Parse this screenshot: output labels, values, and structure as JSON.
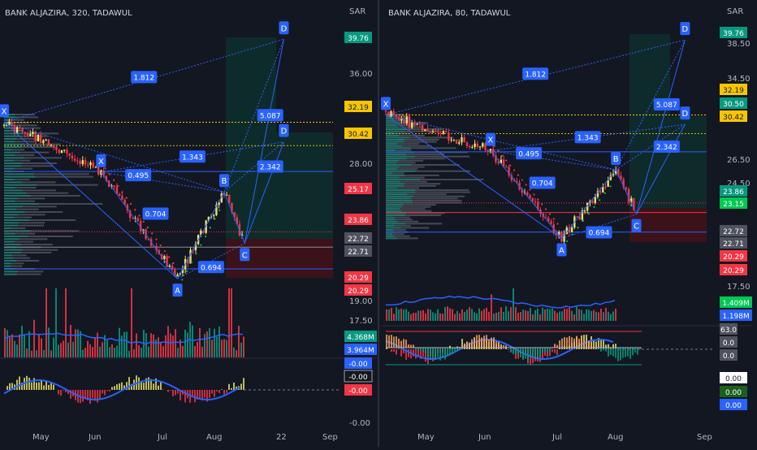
{
  "currency": "SAR",
  "chart_data": [
    {
      "type": "line",
      "title": "BANK ALJAZIRA, 320, TADAWUL",
      "x_axis_labels": [
        "May",
        "Jun",
        "Jul",
        "Aug",
        "22",
        "Sep"
      ],
      "y_axis_labels": [
        "36.00",
        "28.00",
        "19.00",
        "17.50",
        "-0.00"
      ],
      "price_badges": [
        {
          "value": "39.76",
          "color": "#089981"
        },
        {
          "value": "32.19",
          "color": "#f7c600"
        },
        {
          "value": "30.42",
          "color": "#f7c600"
        },
        {
          "value": "25.17",
          "color": "#f23645"
        },
        {
          "value": "23.86",
          "color": "#f23645"
        },
        {
          "value": "22.72",
          "color": "#50535e"
        },
        {
          "value": "22.71",
          "color": "#50535e"
        },
        {
          "value": "20.29",
          "color": "#f23645"
        },
        {
          "value": "20.29",
          "color": "#f23645"
        }
      ],
      "volume_badges": [
        {
          "value": "4.368M",
          "color": "#089981"
        },
        {
          "value": "3.964M",
          "color": "#2962ff"
        }
      ],
      "oscillator_badges": [
        {
          "value": "-0.00",
          "color": "#2962ff"
        },
        {
          "value": "-0.00",
          "color": "#131722"
        },
        {
          "value": "-0.00",
          "color": "#f23645"
        }
      ],
      "pattern_points": [
        {
          "label": "X",
          "x": "2022-04-01",
          "y": 32.2
        },
        {
          "label": "A",
          "x": "2022-07-03",
          "y": 20.3
        },
        {
          "label": "B",
          "x": "2022-07-28",
          "y": 26.9
        },
        {
          "label": "C",
          "x": "2022-08-08",
          "y": 23.0
        },
        {
          "label": "D",
          "x": "2022-08-29",
          "y": 38.5
        },
        {
          "label": "X",
          "x": "2022-05-23",
          "y": 28.4
        },
        {
          "label": "D",
          "x": "2022-08-29",
          "y": 30.7
        }
      ],
      "ratios": [
        "1.812",
        "5.087",
        "0.495",
        "1.343",
        "2.342",
        "0.704",
        "0.694"
      ]
    },
    {
      "type": "line",
      "title": "BANK ALJAZIRA, 80, TADAWUL",
      "x_axis_labels": [
        "May",
        "Jun",
        "Jul",
        "Aug",
        "Sep"
      ],
      "y_axis_labels": [
        "38.50",
        "34.50",
        "26.50",
        "24.50",
        "17.50"
      ],
      "price_badges": [
        {
          "value": "39.76",
          "color": "#089981"
        },
        {
          "value": "32.19",
          "color": "#f7c600"
        },
        {
          "value": "30.50",
          "color": "#089981"
        },
        {
          "value": "30.42",
          "color": "#f7c600"
        },
        {
          "value": "23.86",
          "color": "#089981"
        },
        {
          "value": "23.15",
          "color": "#00c853"
        },
        {
          "value": "22.72",
          "color": "#50535e"
        },
        {
          "value": "22.71",
          "color": "#50535e"
        },
        {
          "value": "20.29",
          "color": "#f23645"
        },
        {
          "value": "20.29",
          "color": "#f23645"
        }
      ],
      "volume_badges": [
        {
          "value": "1.409M",
          "color": "#00c853"
        },
        {
          "value": "1.198M",
          "color": "#2962ff"
        }
      ],
      "indicator_badges": [
        {
          "value": "63.0",
          "color": "#50535e"
        },
        {
          "value": "0.0",
          "color": "#50535e"
        },
        {
          "value": "0.0",
          "color": "#50535e"
        }
      ],
      "oscillator_badges": [
        {
          "value": "0.00",
          "color": "#ffffff"
        },
        {
          "value": "0.00",
          "color": "#1b5e20"
        },
        {
          "value": "0.00",
          "color": "#2962ff"
        }
      ],
      "pattern_points": [
        {
          "label": "X",
          "x": "2022-04-01",
          "y": 32.2
        },
        {
          "label": "A",
          "x": "2022-07-04",
          "y": 20.5
        },
        {
          "label": "B",
          "x": "2022-08-02",
          "y": 27.0
        },
        {
          "label": "C",
          "x": "2022-08-13",
          "y": 22.8
        },
        {
          "label": "D",
          "x": "2022-09-08",
          "y": 39.3
        },
        {
          "label": "X",
          "x": "2022-05-27",
          "y": 28.8
        },
        {
          "label": "D",
          "x": "2022-09-08",
          "y": 31.3
        }
      ],
      "ratios": [
        "1.812",
        "5.087",
        "0.495",
        "1.343",
        "2.342",
        "0.704",
        "0.694"
      ]
    }
  ]
}
